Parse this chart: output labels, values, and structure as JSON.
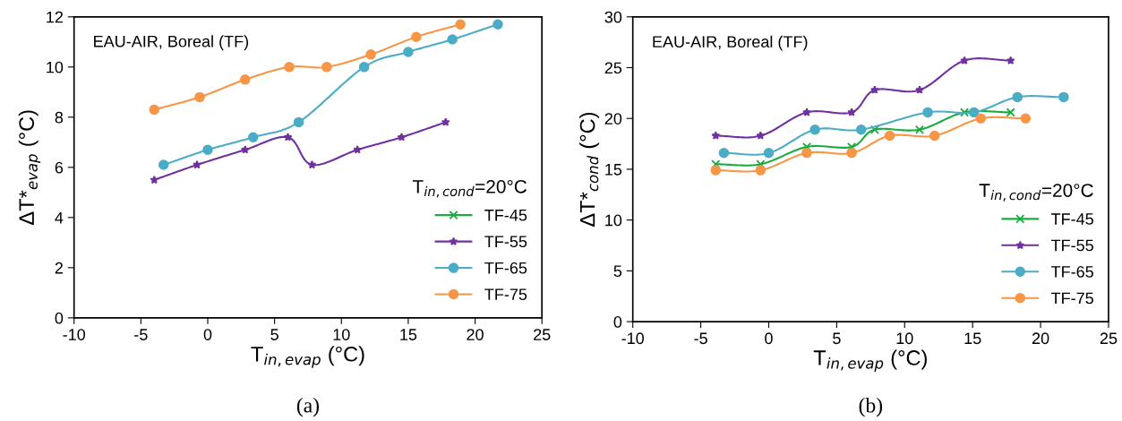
{
  "chart_data": [
    {
      "type": "line",
      "xlabel": "T$_{in,evap}$ (°C)",
      "ylabel": "ΔT*$_{evap}$ (°C)",
      "legend_title": "T$_{in,cond}$=20°C",
      "annotations": [
        "EAU-AIR, Boreal (TF)",
        "(a)"
      ],
      "xlim": [
        -10,
        25
      ],
      "xticks": [
        -10,
        -5,
        0,
        5,
        10,
        15,
        20,
        25
      ],
      "ylim": [
        0,
        12
      ],
      "yticks": [
        0,
        2,
        4,
        6,
        8,
        10,
        12
      ],
      "grid": false,
      "legend": "bottom right",
      "line_style": "solid",
      "series": [
        {
          "name": "TF-45",
          "color": "#1aab40",
          "marker": "cross"
        },
        {
          "name": "TF-55",
          "color": "#7030a0",
          "marker": "star",
          "x": [
            -4.0,
            -0.8,
            2.8,
            6.0,
            7.8,
            11.2,
            14.5,
            17.8
          ],
          "values": [
            5.5,
            6.1,
            6.7,
            7.2,
            6.1,
            6.7,
            7.2,
            7.8
          ]
        },
        {
          "name": "TF-65",
          "color": "#4bacc6",
          "marker": "circle",
          "x": [
            -3.3,
            0.0,
            3.4,
            6.8,
            11.7,
            15.0,
            18.3,
            21.7
          ],
          "values": [
            6.1,
            6.7,
            7.2,
            7.8,
            10.0,
            10.6,
            11.1,
            11.7
          ]
        },
        {
          "name": "TF-75",
          "color": "#f79646",
          "marker": "circle",
          "x": [
            -4.0,
            -0.6,
            2.8,
            6.1,
            8.9,
            12.2,
            15.6,
            18.9
          ],
          "values": [
            8.3,
            8.8,
            9.5,
            10.0,
            10.0,
            10.5,
            11.2,
            11.7
          ]
        }
      ]
    },
    {
      "type": "line",
      "xlabel": "T$_{in,evap}$ (°C)",
      "ylabel": "ΔT*$_{cond}$ (°C)",
      "legend_title": "T$_{in,cond}$=20°C",
      "annotations": [
        "EAU-AIR, Boreal (TF)",
        "(b)"
      ],
      "xlim": [
        -10,
        25
      ],
      "xticks": [
        -10,
        -5,
        0,
        5,
        10,
        15,
        20,
        25
      ],
      "ylim": [
        0,
        30
      ],
      "yticks": [
        0,
        5,
        10,
        15,
        20,
        25,
        30
      ],
      "grid": false,
      "legend": "bottom right",
      "line_style": "solid",
      "series": [
        {
          "name": "TF-45",
          "color": "#1aab40",
          "marker": "cross",
          "x": [
            -3.9,
            -0.6,
            2.8,
            6.1,
            7.8,
            11.1,
            14.4,
            17.8
          ],
          "values": [
            15.5,
            15.5,
            17.2,
            17.2,
            18.9,
            18.9,
            20.6,
            20.6
          ]
        },
        {
          "name": "TF-55",
          "color": "#7030a0",
          "marker": "star",
          "x": [
            -3.9,
            -0.6,
            2.8,
            6.1,
            7.8,
            11.1,
            14.4,
            17.8
          ],
          "values": [
            18.3,
            18.3,
            20.6,
            20.6,
            22.8,
            22.8,
            25.7,
            25.7
          ]
        },
        {
          "name": "TF-65",
          "color": "#4bacc6",
          "marker": "circle",
          "x": [
            -3.3,
            0.0,
            3.4,
            6.8,
            11.7,
            15.1,
            18.3,
            21.7
          ],
          "values": [
            16.6,
            16.6,
            18.9,
            18.9,
            20.6,
            20.6,
            22.1,
            22.1
          ]
        },
        {
          "name": "TF-75",
          "color": "#f79646",
          "marker": "circle",
          "x": [
            -3.9,
            -0.6,
            2.8,
            6.1,
            8.9,
            12.2,
            15.6,
            18.9
          ],
          "values": [
            14.9,
            14.9,
            16.6,
            16.6,
            18.3,
            18.3,
            20.0,
            20.0
          ]
        }
      ]
    }
  ]
}
